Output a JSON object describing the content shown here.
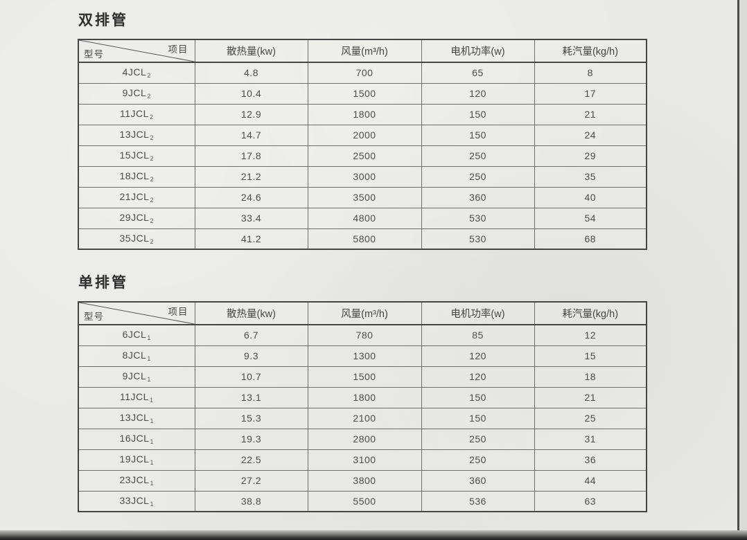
{
  "sections": [
    {
      "title": "双排管",
      "header": {
        "corner_top": "项目",
        "corner_bottom": "型号",
        "cols": [
          "散热量(kw)",
          "风量(m³/h)",
          "电机功率(w)",
          "耗汽量(kg/h)"
        ]
      },
      "rows": [
        {
          "model": "4JCL",
          "sub": "2",
          "heat": "4.8",
          "air": "700",
          "power": "65",
          "steam": "8"
        },
        {
          "model": "9JCL",
          "sub": "2",
          "heat": "10.4",
          "air": "1500",
          "power": "120",
          "steam": "17"
        },
        {
          "model": "11JCL",
          "sub": "2",
          "heat": "12.9",
          "air": "1800",
          "power": "150",
          "steam": "21"
        },
        {
          "model": "13JCL",
          "sub": "2",
          "heat": "14.7",
          "air": "2000",
          "power": "150",
          "steam": "24"
        },
        {
          "model": "15JCL",
          "sub": "2",
          "heat": "17.8",
          "air": "2500",
          "power": "250",
          "steam": "29"
        },
        {
          "model": "18JCL",
          "sub": "2",
          "heat": "21.2",
          "air": "3000",
          "power": "250",
          "steam": "35"
        },
        {
          "model": "21JCL",
          "sub": "2",
          "heat": "24.6",
          "air": "3500",
          "power": "360",
          "steam": "40"
        },
        {
          "model": "29JCL",
          "sub": "2",
          "heat": "33.4",
          "air": "4800",
          "power": "530",
          "steam": "54"
        },
        {
          "model": "35JCL",
          "sub": "2",
          "heat": "41.2",
          "air": "5800",
          "power": "530",
          "steam": "68"
        }
      ]
    },
    {
      "title": "单排管",
      "header": {
        "corner_top": "项目",
        "corner_bottom": "型号",
        "cols": [
          "散热量(kw)",
          "风量(m³/h)",
          "电机功率(w)",
          "耗汽量(kg/h)"
        ]
      },
      "rows": [
        {
          "model": "6JCL",
          "sub": "1",
          "heat": "6.7",
          "air": "780",
          "power": "85",
          "steam": "12"
        },
        {
          "model": "8JCL",
          "sub": "1",
          "heat": "9.3",
          "air": "1300",
          "power": "120",
          "steam": "15"
        },
        {
          "model": "9JCL",
          "sub": "1",
          "heat": "10.7",
          "air": "1500",
          "power": "120",
          "steam": "18"
        },
        {
          "model": "11JCL",
          "sub": "1",
          "heat": "13.1",
          "air": "1800",
          "power": "150",
          "steam": "21"
        },
        {
          "model": "13JCL",
          "sub": "1",
          "heat": "15.3",
          "air": "2100",
          "power": "150",
          "steam": "25"
        },
        {
          "model": "16JCL",
          "sub": "1",
          "heat": "19.3",
          "air": "2800",
          "power": "250",
          "steam": "31"
        },
        {
          "model": "19JCL",
          "sub": "1",
          "heat": "22.5",
          "air": "3100",
          "power": "250",
          "steam": "36"
        },
        {
          "model": "23JCL",
          "sub": "1",
          "heat": "27.2",
          "air": "3800",
          "power": "360",
          "steam": "44"
        },
        {
          "model": "33JCL",
          "sub": "1",
          "heat": "38.8",
          "air": "5500",
          "power": "536",
          "steam": "63"
        }
      ]
    }
  ]
}
